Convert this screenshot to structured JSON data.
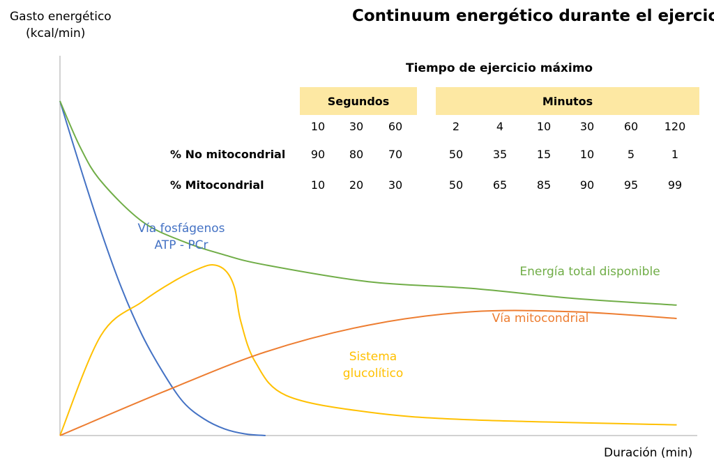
{
  "chart_data": {
    "type": "line",
    "title": "Continuum energético durante el ejercicio",
    "ylabel": [
      "Gasto energético",
      "(kcal/min)"
    ],
    "xlabel": "Duración (min)",
    "series": [
      {
        "name": "Vía fosfágenos ATP - PCr",
        "label_lines": [
          "Vía fosfágenos",
          "ATP - PCr"
        ],
        "color": "#4472c4",
        "x": [
          0,
          10,
          20,
          30,
          40,
          50,
          60,
          70,
          80,
          90,
          100
        ],
        "y": [
          100,
          80,
          61,
          44,
          30,
          19,
          10,
          5,
          2,
          0.5,
          0
        ]
      },
      {
        "name": "Sistema glucolítico",
        "label_lines": [
          "Sistema",
          "glucolítico"
        ],
        "color": "#ffc000",
        "x": [
          0,
          20,
          40,
          55,
          68,
          75,
          81,
          85,
          88,
          95,
          110,
          150,
          200,
          300
        ],
        "y": [
          0,
          30,
          40,
          46,
          50,
          51,
          49,
          44,
          34,
          22,
          12,
          7,
          4.7,
          3.2
        ]
      },
      {
        "name": "Vía mitocondrial",
        "label_lines": [
          "Vía mitocondrial"
        ],
        "color": "#ed7d31",
        "x": [
          0,
          50,
          100,
          150,
          200,
          250,
          300
        ],
        "y": [
          0,
          13,
          25,
          33,
          37,
          37,
          35
        ]
      },
      {
        "name": "Energía total disponible",
        "label_lines": [
          "Energía total disponible"
        ],
        "color": "#70ad47",
        "x": [
          0,
          10,
          20,
          40,
          60,
          80,
          100,
          150,
          200,
          250,
          300
        ],
        "y": [
          100,
          86,
          76,
          64,
          58,
          54,
          51,
          46,
          44,
          41,
          39
        ]
      }
    ],
    "xlim": [
      0,
      310
    ],
    "ylim": [
      0,
      100
    ],
    "grid": false,
    "table": {
      "title": "Tiempo de ejercicio máximo",
      "groups": [
        {
          "label": "Segundos",
          "times": [
            "10",
            "30",
            "60"
          ]
        },
        {
          "label": "Minutos",
          "times": [
            "2",
            "4",
            "10",
            "30",
            "60",
            "120"
          ]
        }
      ],
      "rows": [
        {
          "label": "% No mitocondrial",
          "values": [
            "90",
            "80",
            "70",
            "50",
            "35",
            "15",
            "10",
            "5",
            "1"
          ]
        },
        {
          "label": "% Mitocondrial",
          "values": [
            "10",
            "20",
            "30",
            "50",
            "65",
            "85",
            "90",
            "95",
            "99"
          ]
        }
      ]
    }
  }
}
